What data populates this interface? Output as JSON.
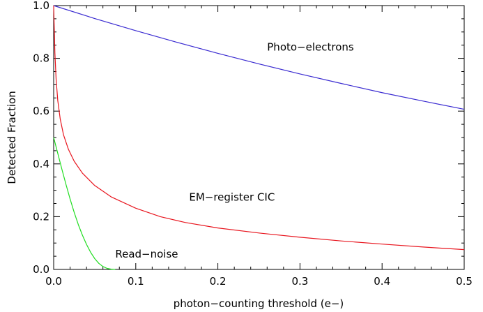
{
  "chart_data": {
    "type": "line",
    "title": "",
    "xlabel": "photon−counting threshold (e−)",
    "ylabel": "Detected Fraction",
    "xlim": [
      0.0,
      0.5
    ],
    "ylim": [
      0.0,
      1.0
    ],
    "x_ticks": [
      0.0,
      0.1,
      0.2,
      0.3,
      0.4,
      0.5
    ],
    "x_tick_labels": [
      "0.0",
      "0.1",
      "0.2",
      "0.3",
      "0.4",
      "0.5"
    ],
    "y_ticks": [
      0.0,
      0.2,
      0.4,
      0.6,
      0.8,
      1.0
    ],
    "y_tick_labels": [
      "0.0",
      "0.2",
      "0.4",
      "0.6",
      "0.8",
      "1.0"
    ],
    "grid": false,
    "legend": "none",
    "series": [
      {
        "color": "#3a2bd1",
        "x": [
          0.0,
          0.05,
          0.1,
          0.15,
          0.2,
          0.25,
          0.3,
          0.35,
          0.4,
          0.45,
          0.5
        ],
        "y": [
          1.0,
          0.951,
          0.905,
          0.861,
          0.819,
          0.779,
          0.741,
          0.705,
          0.67,
          0.638,
          0.607
        ]
      },
      {
        "color": "#e8151e",
        "x": [
          0.0,
          0.0015,
          0.003,
          0.005,
          0.008,
          0.012,
          0.018,
          0.025,
          0.035,
          0.05,
          0.07,
          0.1,
          0.13,
          0.16,
          0.2,
          0.25,
          0.3,
          0.35,
          0.4,
          0.45,
          0.5
        ],
        "y": [
          1.0,
          0.82,
          0.72,
          0.64,
          0.57,
          0.51,
          0.455,
          0.41,
          0.365,
          0.318,
          0.275,
          0.232,
          0.2,
          0.178,
          0.157,
          0.138,
          0.122,
          0.108,
          0.096,
          0.085,
          0.075
        ]
      },
      {
        "color": "#20dd20",
        "x": [
          0.0,
          0.005,
          0.01,
          0.015,
          0.02,
          0.025,
          0.03,
          0.035,
          0.04,
          0.045,
          0.05,
          0.055,
          0.06,
          0.065,
          0.07,
          0.075
        ],
        "y": [
          0.5,
          0.44,
          0.38,
          0.322,
          0.267,
          0.216,
          0.17,
          0.13,
          0.095,
          0.065,
          0.041,
          0.023,
          0.011,
          0.004,
          0.001,
          0.0
        ]
      }
    ],
    "annotations": [
      {
        "text": "Photo−electrons",
        "x": 0.26,
        "y": 0.83
      },
      {
        "text": "EM−register CIC",
        "x": 0.165,
        "y": 0.26
      },
      {
        "text": "Read−noise",
        "x": 0.075,
        "y": 0.045
      }
    ]
  }
}
